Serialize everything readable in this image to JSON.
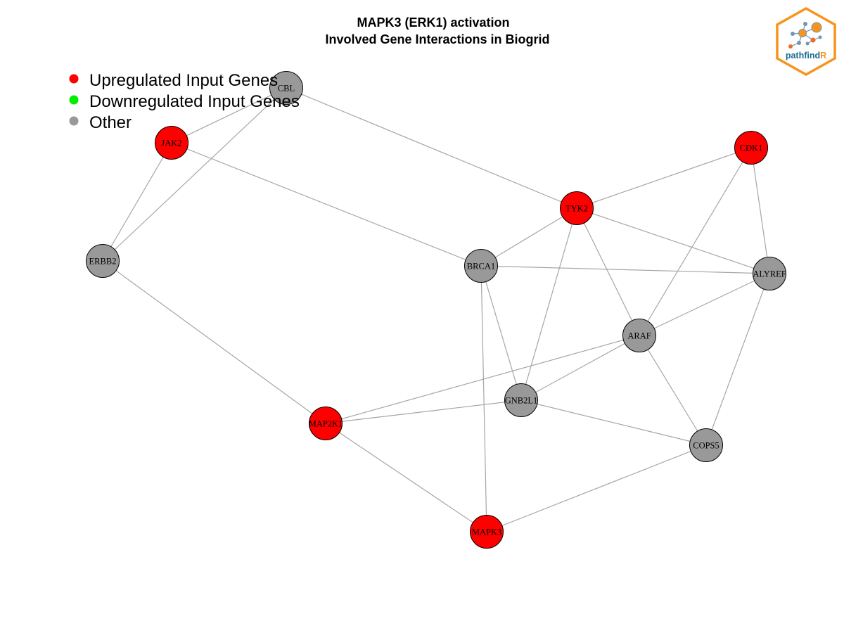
{
  "title": {
    "line1": "MAPK3 (ERK1) activation",
    "line2": "Involved Gene Interactions in Biogrid"
  },
  "legend": [
    {
      "label": "Upregulated Input Genes",
      "color": "#ff0000"
    },
    {
      "label": "Downregulated Input Genes",
      "color": "#00ee00"
    },
    {
      "label": "Other",
      "color": "#999999"
    }
  ],
  "logo": {
    "text_main": "pathfind",
    "text_accent": "R",
    "border_color": "#f7941d",
    "text_color": "#1b6c93"
  },
  "colors": {
    "up": "#ff0000",
    "down": "#00ee00",
    "other": "#999999",
    "edge": "#a6a6a6"
  },
  "nodes": [
    {
      "id": "CBL",
      "type": "other"
    },
    {
      "id": "JAK2",
      "type": "up"
    },
    {
      "id": "CDK1",
      "type": "up"
    },
    {
      "id": "TYK2",
      "type": "up"
    },
    {
      "id": "ERBB2",
      "type": "other"
    },
    {
      "id": "BRCA1",
      "type": "other"
    },
    {
      "id": "ALYREF",
      "type": "other"
    },
    {
      "id": "ARAF",
      "type": "other"
    },
    {
      "id": "GNB2L1",
      "type": "other"
    },
    {
      "id": "MAP2K1",
      "type": "up"
    },
    {
      "id": "COPS5",
      "type": "other"
    },
    {
      "id": "MAPK3",
      "type": "up"
    }
  ],
  "edges": [
    [
      "CBL",
      "JAK2"
    ],
    [
      "CBL",
      "ERBB2"
    ],
    [
      "CBL",
      "TYK2"
    ],
    [
      "JAK2",
      "ERBB2"
    ],
    [
      "JAK2",
      "BRCA1"
    ],
    [
      "ERBB2",
      "MAP2K1"
    ],
    [
      "CDK1",
      "TYK2"
    ],
    [
      "CDK1",
      "ARAF"
    ],
    [
      "CDK1",
      "ALYREF"
    ],
    [
      "TYK2",
      "BRCA1"
    ],
    [
      "TYK2",
      "ALYREF"
    ],
    [
      "TYK2",
      "GNB2L1"
    ],
    [
      "TYK2",
      "ARAF"
    ],
    [
      "BRCA1",
      "ALYREF"
    ],
    [
      "BRCA1",
      "GNB2L1"
    ],
    [
      "BRCA1",
      "MAPK3"
    ],
    [
      "ALYREF",
      "ARAF"
    ],
    [
      "ALYREF",
      "COPS5"
    ],
    [
      "ARAF",
      "MAP2K1"
    ],
    [
      "ARAF",
      "GNB2L1"
    ],
    [
      "ARAF",
      "COPS5"
    ],
    [
      "GNB2L1",
      "MAP2K1"
    ],
    [
      "GNB2L1",
      "COPS5"
    ],
    [
      "MAP2K1",
      "MAPK3"
    ],
    [
      "COPS5",
      "MAPK3"
    ]
  ]
}
